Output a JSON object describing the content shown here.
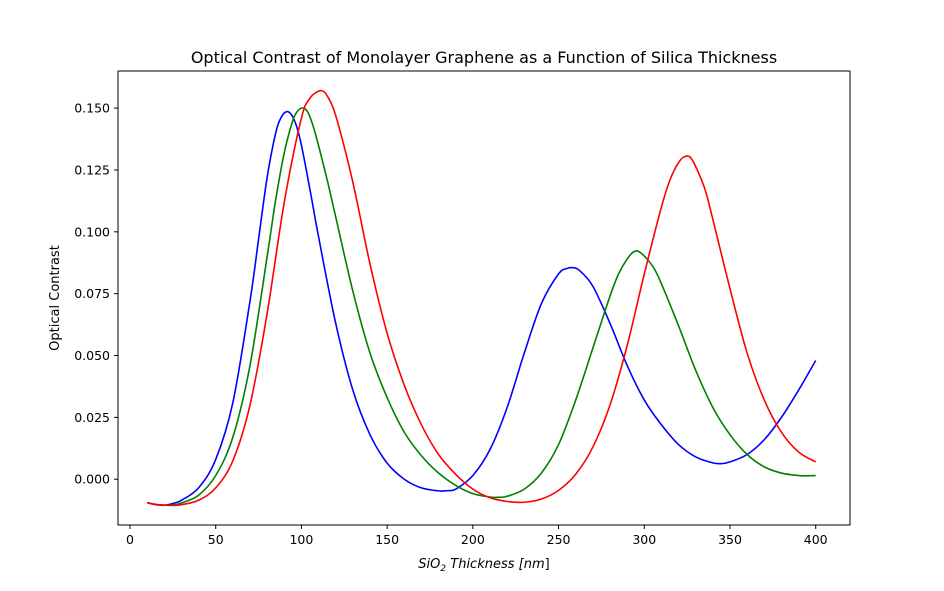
{
  "chart_data": {
    "type": "line",
    "title": "Optical Contrast of Monolayer Graphene as a Function of Silica Thickness",
    "xlabel_prefix": "SiO",
    "xlabel_sub": "2",
    "xlabel_suffix": " Thickness [",
    "xlabel_unit": "nm",
    "xlabel_close": "]",
    "ylabel": "Optical Contrast",
    "xlim": [
      -7,
      420
    ],
    "ylim": [
      -0.0185,
      0.165
    ],
    "xticks": [
      0,
      50,
      100,
      150,
      200,
      250,
      300,
      350,
      400
    ],
    "xtick_labels": [
      "0",
      "50",
      "100",
      "150",
      "200",
      "250",
      "300",
      "350",
      "400"
    ],
    "yticks": [
      0.0,
      0.025,
      0.05,
      0.075,
      0.1,
      0.125,
      0.15
    ],
    "ytick_labels": [
      "0.000",
      "0.025",
      "0.050",
      "0.075",
      "0.100",
      "0.125",
      "0.150"
    ],
    "grid": false,
    "series": [
      {
        "color": "#0000ff",
        "x": [
          10,
          15,
          20,
          25,
          30,
          40,
          50,
          60,
          70,
          75,
          80,
          85,
          88,
          91,
          94,
          97,
          100,
          105,
          110,
          120,
          130,
          140,
          150,
          160,
          170,
          180,
          185,
          190,
          200,
          210,
          220,
          230,
          240,
          250,
          255,
          258,
          262,
          270,
          280,
          290,
          300,
          310,
          320,
          330,
          340,
          345,
          350,
          360,
          370,
          380,
          390,
          400
        ],
        "y": [
          -0.0095,
          -0.0103,
          -0.0105,
          -0.0098,
          -0.0085,
          -0.0035,
          0.008,
          0.031,
          0.072,
          0.097,
          0.122,
          0.14,
          0.146,
          0.1485,
          0.1475,
          0.143,
          0.135,
          0.117,
          0.098,
          0.063,
          0.036,
          0.018,
          0.0065,
          0.0,
          -0.0035,
          -0.0047,
          -0.0046,
          -0.004,
          0.0015,
          0.012,
          0.029,
          0.051,
          0.071,
          0.083,
          0.0852,
          0.0855,
          0.0845,
          0.078,
          0.063,
          0.046,
          0.032,
          0.022,
          0.014,
          0.009,
          0.0066,
          0.0063,
          0.007,
          0.01,
          0.016,
          0.025,
          0.036,
          0.048
        ]
      },
      {
        "color": "#008000",
        "x": [
          10,
          15,
          20,
          25,
          30,
          40,
          50,
          60,
          70,
          80,
          85,
          90,
          95,
          98,
          101,
          104,
          108,
          115,
          120,
          130,
          140,
          150,
          160,
          170,
          180,
          190,
          200,
          210,
          215,
          220,
          230,
          240,
          250,
          260,
          270,
          280,
          285,
          290,
          294,
          298,
          305,
          310,
          320,
          330,
          340,
          350,
          360,
          370,
          380,
          390,
          395,
          400
        ],
        "y": [
          -0.0095,
          -0.0102,
          -0.0105,
          -0.0104,
          -0.0096,
          -0.0065,
          0.0015,
          0.017,
          0.046,
          0.09,
          0.113,
          0.132,
          0.145,
          0.149,
          0.15,
          0.148,
          0.14,
          0.121,
          0.106,
          0.076,
          0.051,
          0.033,
          0.019,
          0.0095,
          0.0025,
          -0.0025,
          -0.0058,
          -0.0072,
          -0.0073,
          -0.0069,
          -0.004,
          0.0025,
          0.014,
          0.032,
          0.053,
          0.074,
          0.083,
          0.089,
          0.092,
          0.0915,
          0.086,
          0.079,
          0.062,
          0.044,
          0.029,
          0.018,
          0.01,
          0.005,
          0.0025,
          0.0015,
          0.0014,
          0.0015
        ]
      },
      {
        "color": "#ff0000",
        "x": [
          10,
          15,
          20,
          25,
          30,
          40,
          50,
          60,
          70,
          80,
          90,
          100,
          105,
          109,
          112,
          115,
          120,
          130,
          140,
          150,
          160,
          170,
          180,
          190,
          200,
          210,
          220,
          230,
          240,
          250,
          260,
          270,
          280,
          290,
          300,
          310,
          315,
          320,
          324,
          328,
          335,
          340,
          350,
          360,
          370,
          380,
          390,
          400
        ],
        "y": [
          -0.0095,
          -0.0102,
          -0.0105,
          -0.0106,
          -0.0103,
          -0.0085,
          -0.0035,
          0.0075,
          0.03,
          0.067,
          0.112,
          0.146,
          0.154,
          0.1565,
          0.157,
          0.155,
          0.147,
          0.12,
          0.087,
          0.059,
          0.038,
          0.022,
          0.01,
          0.002,
          -0.004,
          -0.0075,
          -0.009,
          -0.0093,
          -0.008,
          -0.0045,
          0.002,
          0.013,
          0.03,
          0.054,
          0.083,
          0.11,
          0.121,
          0.128,
          0.1305,
          0.129,
          0.118,
          0.105,
          0.077,
          0.051,
          0.032,
          0.019,
          0.011,
          0.007
        ]
      }
    ]
  }
}
